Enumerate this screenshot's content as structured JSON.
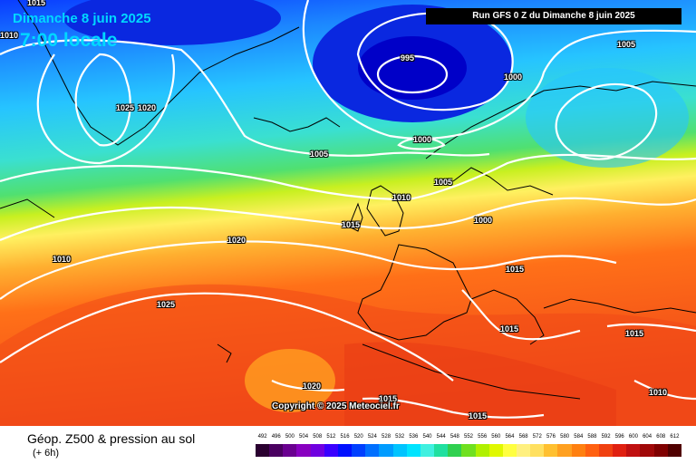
{
  "header": {
    "date": "Dimanche 8 juin 2025",
    "time": "7:00 locale",
    "run": "Run GFS 0 Z du Dimanche 8 juin 2025"
  },
  "copyright": "Copyright © 2025 Meteociel.fr",
  "isobars": [
    {
      "label": "1015"
    },
    {
      "label": "1010"
    },
    {
      "label": "995"
    },
    {
      "label": "1000"
    },
    {
      "label": "1005"
    },
    {
      "label": "1025"
    },
    {
      "label": "1020"
    },
    {
      "label": "1005"
    },
    {
      "label": "1000"
    },
    {
      "label": "1010"
    },
    {
      "label": "1005"
    },
    {
      "label": "1015"
    },
    {
      "label": "1000"
    },
    {
      "label": "1020"
    },
    {
      "label": "1010"
    },
    {
      "label": "1015"
    },
    {
      "label": "1025"
    },
    {
      "label": "1015"
    },
    {
      "label": "1015"
    },
    {
      "label": "1020"
    },
    {
      "label": "1015"
    },
    {
      "label": "1015"
    },
    {
      "label": "1010"
    }
  ],
  "footer": {
    "title": "Géop. Z500 & pression au sol",
    "subtitle": "(+ 6h)"
  },
  "scale": {
    "labels": [
      "492",
      "496",
      "500",
      "504",
      "508",
      "512",
      "516",
      "520",
      "524",
      "528",
      "532",
      "536",
      "540",
      "544",
      "548",
      "552",
      "556",
      "560",
      "564",
      "568",
      "572",
      "576",
      "580",
      "584",
      "588",
      "592",
      "596",
      "600",
      "604",
      "608",
      "612"
    ],
    "colors": [
      "#2a0030",
      "#4a0060",
      "#6a0090",
      "#8800c0",
      "#7000e0",
      "#3a00ff",
      "#0010ff",
      "#0040ff",
      "#0070ff",
      "#009cff",
      "#00c4ff",
      "#00e4ff",
      "#40f0e0",
      "#20e0a0",
      "#30d050",
      "#70e020",
      "#b0f000",
      "#e0f800",
      "#ffff40",
      "#fff080",
      "#ffe060",
      "#ffc030",
      "#ffa020",
      "#ff8010",
      "#ff6010",
      "#f04010",
      "#e02010",
      "#c01010",
      "#a00808",
      "#800000",
      "#500000"
    ]
  }
}
